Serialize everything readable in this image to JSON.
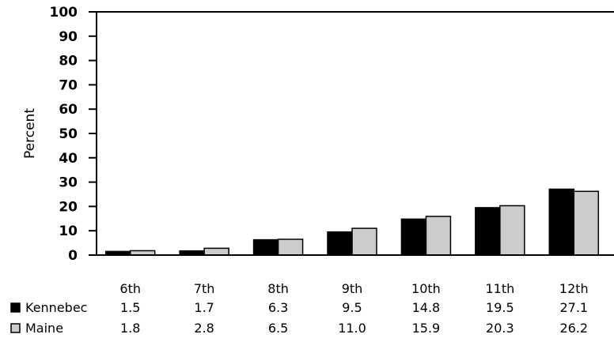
{
  "chart_data": {
    "type": "bar",
    "ylabel": "Percent",
    "ylim": [
      0,
      100
    ],
    "yticks": [
      0,
      10,
      20,
      30,
      40,
      50,
      60,
      70,
      80,
      90,
      100
    ],
    "categories": [
      "6th",
      "7th",
      "8th",
      "9th",
      "10th",
      "11th",
      "12th"
    ],
    "series": [
      {
        "name": "Kennebec",
        "color": "#000000",
        "values": [
          1.5,
          1.7,
          6.3,
          9.5,
          14.8,
          19.5,
          27.1
        ],
        "labels": [
          "1.5",
          "1.7",
          "6.3",
          "9.5",
          "14.8",
          "19.5",
          "27.1"
        ]
      },
      {
        "name": "Maine",
        "color": "#cccccc",
        "values": [
          1.8,
          2.8,
          6.5,
          11.0,
          15.9,
          20.3,
          26.2
        ],
        "labels": [
          "1.8",
          "2.8",
          "6.5",
          "11.0",
          "15.9",
          "20.3",
          "26.2"
        ]
      }
    ],
    "legend": "bottom-left data table"
  }
}
